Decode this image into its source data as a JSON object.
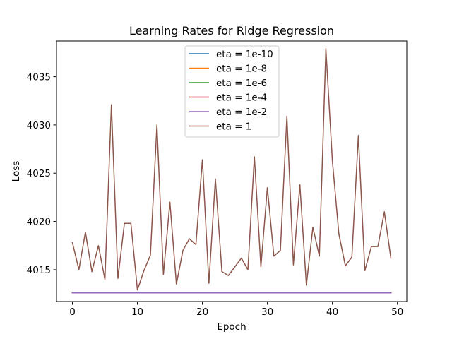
{
  "chart_data": {
    "type": "line",
    "title": "Learning Rates for Ridge Regression",
    "xlabel": "Epoch",
    "ylabel": "Loss",
    "xlim": [
      -2.45,
      51.45
    ],
    "ylim": [
      4011.7,
      4038.7
    ],
    "xticks": [
      0,
      10,
      20,
      30,
      40,
      50
    ],
    "yticks": [
      4015,
      4020,
      4025,
      4030,
      4035
    ],
    "grid": false,
    "legend_placement": "upper center",
    "x": [
      0,
      1,
      2,
      3,
      4,
      5,
      6,
      7,
      8,
      9,
      10,
      11,
      12,
      13,
      14,
      15,
      16,
      17,
      18,
      19,
      20,
      21,
      22,
      23,
      24,
      25,
      26,
      27,
      28,
      29,
      30,
      31,
      32,
      33,
      34,
      35,
      36,
      37,
      38,
      39,
      40,
      41,
      42,
      43,
      44,
      45,
      46,
      47,
      48,
      49
    ],
    "series": [
      {
        "name": "eta = 1e-10",
        "color": "#1f77b4",
        "values": [
          4012.6,
          4012.6,
          4012.6,
          4012.6,
          4012.6,
          4012.6,
          4012.6,
          4012.6,
          4012.6,
          4012.6,
          4012.6,
          4012.6,
          4012.6,
          4012.6,
          4012.6,
          4012.6,
          4012.6,
          4012.6,
          4012.6,
          4012.6,
          4012.6,
          4012.6,
          4012.6,
          4012.6,
          4012.6,
          4012.6,
          4012.6,
          4012.6,
          4012.6,
          4012.6,
          4012.6,
          4012.6,
          4012.6,
          4012.6,
          4012.6,
          4012.6,
          4012.6,
          4012.6,
          4012.6,
          4012.6,
          4012.6,
          4012.6,
          4012.6,
          4012.6,
          4012.6,
          4012.6,
          4012.6,
          4012.6,
          4012.6,
          4012.6
        ]
      },
      {
        "name": "eta = 1e-8",
        "color": "#ff7f0e",
        "values": [
          4012.6,
          4012.6,
          4012.6,
          4012.6,
          4012.6,
          4012.6,
          4012.6,
          4012.6,
          4012.6,
          4012.6,
          4012.6,
          4012.6,
          4012.6,
          4012.6,
          4012.6,
          4012.6,
          4012.6,
          4012.6,
          4012.6,
          4012.6,
          4012.6,
          4012.6,
          4012.6,
          4012.6,
          4012.6,
          4012.6,
          4012.6,
          4012.6,
          4012.6,
          4012.6,
          4012.6,
          4012.6,
          4012.6,
          4012.6,
          4012.6,
          4012.6,
          4012.6,
          4012.6,
          4012.6,
          4012.6,
          4012.6,
          4012.6,
          4012.6,
          4012.6,
          4012.6,
          4012.6,
          4012.6,
          4012.6,
          4012.6,
          4012.6
        ]
      },
      {
        "name": "eta = 1e-6",
        "color": "#2ca02c",
        "values": [
          4012.6,
          4012.6,
          4012.6,
          4012.6,
          4012.6,
          4012.6,
          4012.6,
          4012.6,
          4012.6,
          4012.6,
          4012.6,
          4012.6,
          4012.6,
          4012.6,
          4012.6,
          4012.6,
          4012.6,
          4012.6,
          4012.6,
          4012.6,
          4012.6,
          4012.6,
          4012.6,
          4012.6,
          4012.6,
          4012.6,
          4012.6,
          4012.6,
          4012.6,
          4012.6,
          4012.6,
          4012.6,
          4012.6,
          4012.6,
          4012.6,
          4012.6,
          4012.6,
          4012.6,
          4012.6,
          4012.6,
          4012.6,
          4012.6,
          4012.6,
          4012.6,
          4012.6,
          4012.6,
          4012.6,
          4012.6,
          4012.6,
          4012.6
        ]
      },
      {
        "name": "eta = 1e-4",
        "color": "#d62728",
        "values": [
          4012.6,
          4012.6,
          4012.6,
          4012.6,
          4012.6,
          4012.6,
          4012.6,
          4012.6,
          4012.6,
          4012.6,
          4012.6,
          4012.6,
          4012.6,
          4012.6,
          4012.6,
          4012.6,
          4012.6,
          4012.6,
          4012.6,
          4012.6,
          4012.6,
          4012.6,
          4012.6,
          4012.6,
          4012.6,
          4012.6,
          4012.6,
          4012.6,
          4012.6,
          4012.6,
          4012.6,
          4012.6,
          4012.6,
          4012.6,
          4012.6,
          4012.6,
          4012.6,
          4012.6,
          4012.6,
          4012.6,
          4012.6,
          4012.6,
          4012.6,
          4012.6,
          4012.6,
          4012.6,
          4012.6,
          4012.6,
          4012.6,
          4012.6
        ]
      },
      {
        "name": "eta = 1e-2",
        "color": "#9467bd",
        "values": [
          4012.6,
          4012.6,
          4012.6,
          4012.6,
          4012.6,
          4012.6,
          4012.6,
          4012.6,
          4012.6,
          4012.6,
          4012.6,
          4012.6,
          4012.6,
          4012.6,
          4012.6,
          4012.6,
          4012.6,
          4012.6,
          4012.6,
          4012.6,
          4012.6,
          4012.6,
          4012.6,
          4012.6,
          4012.6,
          4012.6,
          4012.6,
          4012.6,
          4012.6,
          4012.6,
          4012.6,
          4012.6,
          4012.6,
          4012.6,
          4012.6,
          4012.6,
          4012.6,
          4012.6,
          4012.6,
          4012.6,
          4012.6,
          4012.6,
          4012.6,
          4012.6,
          4012.6,
          4012.6,
          4012.6,
          4012.6,
          4012.6,
          4012.6
        ]
      },
      {
        "name": "eta = 1",
        "color": "#8c564b",
        "values": [
          4017.8,
          4015.0,
          4018.9,
          4014.8,
          4017.5,
          4014.0,
          4032.1,
          4014.1,
          4019.8,
          4019.8,
          4012.9,
          4014.9,
          4016.5,
          4030.0,
          4014.5,
          4022.0,
          4013.5,
          4017.0,
          4018.2,
          4017.6,
          4026.4,
          4013.6,
          4024.4,
          4014.8,
          4014.4,
          4015.3,
          4016.2,
          4015.0,
          4026.7,
          4015.3,
          4023.5,
          4016.4,
          4017.0,
          4030.9,
          4015.5,
          4023.8,
          4013.4,
          4019.4,
          4016.4,
          4037.9,
          4026.3,
          4018.7,
          4015.4,
          4016.3,
          4028.9,
          4014.9,
          4017.4,
          4017.4,
          4021.0,
          4016.2
        ]
      }
    ]
  }
}
